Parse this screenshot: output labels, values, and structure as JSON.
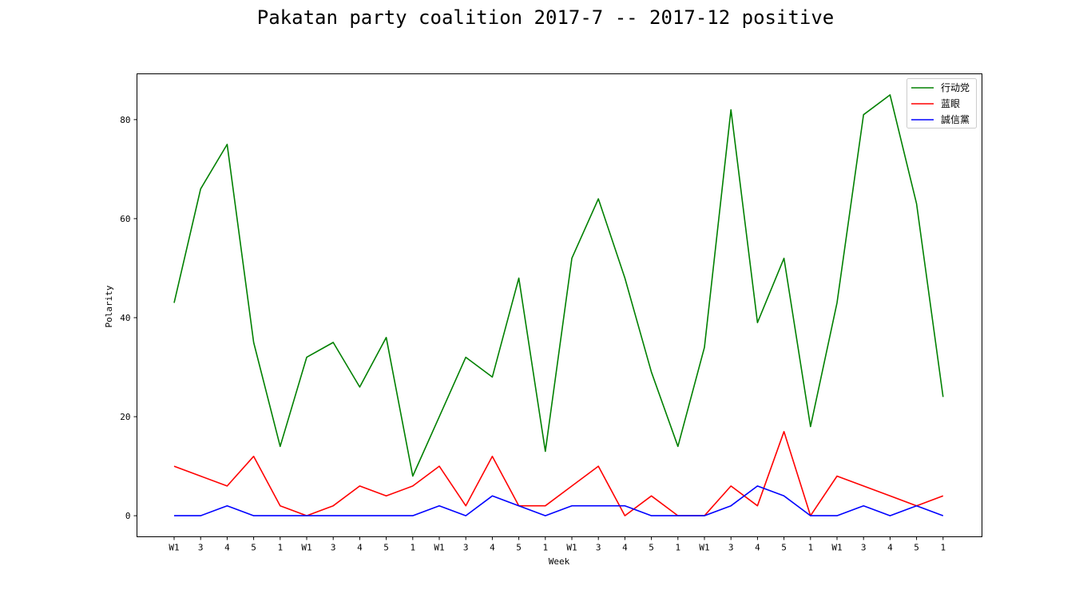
{
  "chart_data": {
    "type": "line",
    "title": "Pakatan party coalition 2017-7 -- 2017-12 positive",
    "xlabel": "Week",
    "ylabel": "Polarity",
    "ylim": [
      -4.25,
      89.25
    ],
    "y_ticks": [
      0,
      20,
      40,
      60,
      80
    ],
    "grid": false,
    "legend_position": "top-right",
    "categories": [
      "W1",
      "3",
      "4",
      "5",
      "1",
      "W1",
      "3",
      "4",
      "5",
      "1",
      "W1",
      "3",
      "4",
      "5",
      "1",
      "W1",
      "3",
      "4",
      "5",
      "1",
      "W1",
      "3",
      "4",
      "5",
      "1",
      "W1",
      "3",
      "4",
      "5",
      "1"
    ],
    "series": [
      {
        "name": "行动党",
        "color": "#008000",
        "values": [
          43,
          66,
          75,
          35,
          14,
          32,
          35,
          26,
          36,
          8,
          20,
          32,
          28,
          48,
          13,
          52,
          64,
          48,
          29,
          14,
          34,
          82,
          39,
          52,
          18,
          43,
          81,
          85,
          63,
          24
        ]
      },
      {
        "name": "蓝眼",
        "color": "#ff0000",
        "values": [
          10,
          8,
          6,
          12,
          2,
          0,
          2,
          6,
          4,
          6,
          10,
          2,
          12,
          2,
          2,
          6,
          10,
          0,
          4,
          0,
          0,
          6,
          2,
          17,
          0,
          8,
          6,
          4,
          2,
          4
        ]
      },
      {
        "name": "誠信黨",
        "color": "#0000ff",
        "values": [
          0,
          0,
          2,
          0,
          0,
          0,
          0,
          0,
          0,
          0,
          2,
          0,
          4,
          2,
          0,
          2,
          2,
          2,
          0,
          0,
          0,
          2,
          6,
          4,
          0,
          0,
          2,
          0,
          2,
          0
        ]
      }
    ]
  }
}
